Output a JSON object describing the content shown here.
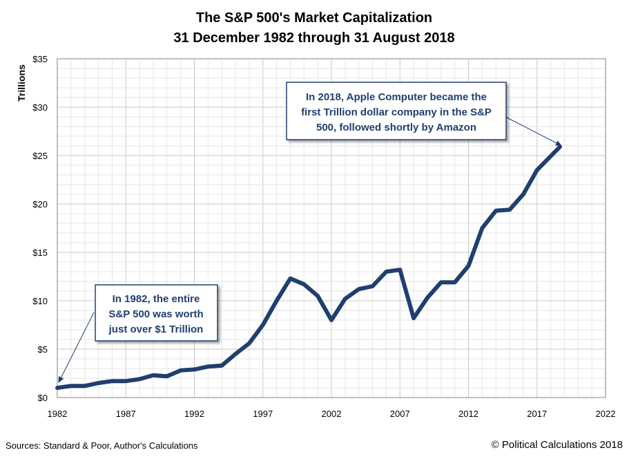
{
  "chart_data": {
    "type": "line",
    "title": [
      "The S&P 500's Market Capitalization",
      "31 December 1982 through 31 August 2018"
    ],
    "xlabel": "",
    "ylabel": "Trillions",
    "xlim": [
      1982,
      2022
    ],
    "ylim": [
      0,
      35
    ],
    "x_ticks": [
      1982,
      1987,
      1992,
      1997,
      2002,
      2007,
      2012,
      2017,
      2022
    ],
    "y_ticks": [
      0,
      5,
      10,
      15,
      20,
      25,
      30,
      35
    ],
    "y_tick_labels": [
      "$0",
      "$5",
      "$10",
      "$15",
      "$20",
      "$25",
      "$30",
      "$35"
    ],
    "grid": true,
    "series": [
      {
        "name": "S&P 500 Market Capitalization",
        "color": "#1f3f6e",
        "x": [
          1982,
          1983,
          1984,
          1985,
          1986,
          1987,
          1988,
          1989,
          1990,
          1991,
          1992,
          1993,
          1994,
          1995,
          1996,
          1997,
          1998,
          1999,
          2000,
          2001,
          2002,
          2003,
          2004,
          2005,
          2006,
          2007,
          2008,
          2009,
          2010,
          2011,
          2012,
          2013,
          2014,
          2015,
          2016,
          2017,
          2018.67
        ],
        "values": [
          1.0,
          1.2,
          1.2,
          1.5,
          1.7,
          1.7,
          1.9,
          2.3,
          2.2,
          2.8,
          2.9,
          3.2,
          3.3,
          4.5,
          5.6,
          7.5,
          10.0,
          12.3,
          11.7,
          10.5,
          8.0,
          10.2,
          11.2,
          11.5,
          13.0,
          13.2,
          8.2,
          10.3,
          11.9,
          11.9,
          13.6,
          17.5,
          19.3,
          19.4,
          21.0,
          23.5,
          25.9
        ]
      }
    ],
    "annotations": [
      {
        "lines": [
          "In 1982, the entire",
          "S&P 500 was worth",
          "just over $1 Trillion"
        ],
        "points_to": {
          "x": 1982,
          "y": 1.0
        }
      },
      {
        "lines": [
          "In 2018, Apple Computer became the",
          "first Trillion dollar company in the S&P",
          "500, followed shortly by Amazon"
        ],
        "points_to": {
          "x": 2018.67,
          "y": 25.9
        }
      }
    ]
  },
  "footer": {
    "sources": "Sources: Standard & Poor, Author's Calculations",
    "copyright": "© Political Calculations 2018"
  }
}
